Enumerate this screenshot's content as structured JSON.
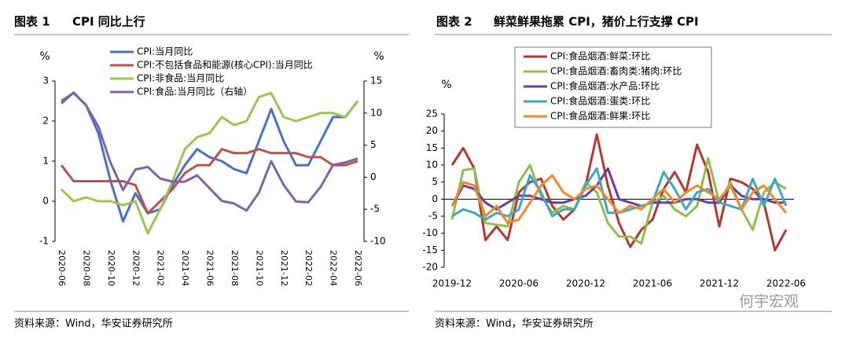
{
  "chart_data": [
    {
      "type": "line",
      "figure_label": "图表 1",
      "title": "CPI 同比上行",
      "source": "资料来源：Wind，华安证券研究所",
      "ylabel": "%",
      "y2label": "%",
      "xtick_rotation": 90,
      "legend_frame": false,
      "categories": [
        "2020-06",
        null,
        "2020-08",
        null,
        "2020-10",
        null,
        "2020-12",
        null,
        "2021-02",
        null,
        "2021-04",
        null,
        "2021-06",
        null,
        "2021-08",
        null,
        "2021-10",
        null,
        "2021-12",
        null,
        "2022-02",
        null,
        "2022-04",
        null,
        "2022-06"
      ],
      "ylim": [
        -1,
        3
      ],
      "yticks": [
        -1,
        0,
        1,
        2,
        3
      ],
      "y2lim": [
        -10,
        15
      ],
      "y2ticks": [
        -10,
        -5,
        0,
        5,
        10,
        15
      ],
      "series": [
        {
          "name": "CPI:当月同比",
          "color": "#4472c4",
          "values": [
            2.5,
            2.7,
            2.4,
            1.7,
            0.5,
            -0.5,
            0.2,
            -0.3,
            -0.2,
            0.4,
            0.9,
            1.3,
            1.1,
            1.0,
            0.8,
            0.7,
            1.5,
            2.3,
            1.5,
            0.9,
            0.9,
            1.5,
            2.1,
            2.1,
            2.5
          ]
        },
        {
          "name": "CPI:不包括食品和能源(核心CPI):当月同比",
          "color": "#c0504d",
          "values": [
            0.9,
            0.5,
            0.5,
            0.5,
            0.5,
            0.5,
            0.4,
            -0.3,
            0,
            0.3,
            0.7,
            0.9,
            0.9,
            1.3,
            1.2,
            1.2,
            1.3,
            1.2,
            1.2,
            1.2,
            1.1,
            1.1,
            0.9,
            0.9,
            1.0
          ]
        },
        {
          "name": "CPI:非食品:当月同比",
          "color": "#9bc54d",
          "values": [
            0.3,
            0,
            0.1,
            0,
            0,
            -0.1,
            0,
            -0.8,
            -0.2,
            0.5,
            1.3,
            1.6,
            1.7,
            2.1,
            1.9,
            2.0,
            2.6,
            2.7,
            2.1,
            2.0,
            2.1,
            2.2,
            2.2,
            2.1,
            2.5
          ]
        },
        {
          "name": "CPI:食品:当月同比（右轴）",
          "color": "#8064a2",
          "axis": "y2",
          "values": [
            11.5,
            13.2,
            11.2,
            7.9,
            2.2,
            -2.0,
            1.2,
            1.6,
            -0.2,
            -0.7,
            -0.7,
            0.3,
            -1.7,
            -3.7,
            -4.1,
            -5.2,
            -2.4,
            2.5,
            -1.2,
            -3.8,
            -3.9,
            -1.5,
            1.9,
            2.3,
            2.9
          ]
        }
      ]
    },
    {
      "type": "line",
      "figure_label": "图表 2",
      "title": "鲜菜鲜果拖累 CPI，猪价上行支撑 CPI",
      "source": "资料来源：Wind，华安证券研究所",
      "ylabel": "%",
      "xtick_rotation": 0,
      "legend_frame": true,
      "categories": [
        "2019-12",
        null,
        null,
        null,
        null,
        null,
        "2020-06",
        null,
        null,
        null,
        null,
        null,
        "2020-12",
        null,
        null,
        null,
        null,
        null,
        "2021-06",
        null,
        null,
        null,
        null,
        null,
        "2021-12",
        null,
        null,
        null,
        null,
        null,
        "2022-06"
      ],
      "ylim": [
        -20,
        25
      ],
      "yticks": [
        -20,
        -15,
        -10,
        -5,
        0,
        5,
        10,
        15,
        20,
        25
      ],
      "series": [
        {
          "name": "CPI:食品烟酒:鲜菜:环比",
          "color": "#b5372e",
          "values": [
            10,
            15,
            9,
            -12,
            -8,
            -12,
            2,
            5,
            6,
            -2,
            -6,
            -3,
            4,
            19,
            4,
            -7,
            -14,
            -9,
            -6,
            3,
            8,
            2,
            16,
            8,
            -8,
            6,
            5,
            3,
            -1,
            -15,
            -9
          ]
        },
        {
          "name": "CPI:食品烟酒:畜肉类:猪肉:环比",
          "color": "#8cbf4f",
          "values": [
            -6,
            8.5,
            9,
            -7,
            -7.5,
            -8,
            5,
            10,
            1,
            -4,
            -2,
            -3,
            5,
            2,
            -7,
            -11,
            -11,
            -13,
            -1,
            1,
            -3,
            -5,
            -2,
            12,
            -1,
            5,
            -3,
            -9,
            2,
            5,
            3
          ]
        },
        {
          "name": "CPI:食品烟酒:水产品:环比",
          "color": "#6a3d9a",
          "values": [
            -2,
            4,
            3,
            -1,
            -3,
            -1,
            1,
            1,
            0,
            -1,
            -1,
            0,
            1,
            4,
            9,
            0,
            -1,
            -2,
            -1,
            -1,
            -1,
            0,
            0,
            -1,
            -1,
            4,
            1,
            0,
            0,
            -1,
            -1
          ]
        },
        {
          "name": "CPI:食品烟酒:蛋类:环比",
          "color": "#3aa9c4",
          "values": [
            -5,
            -3,
            -4,
            -6,
            -4,
            -5,
            -3,
            7,
            2,
            -5,
            -3,
            -3,
            4,
            9,
            -4,
            -4,
            -3,
            -2,
            -1,
            8,
            3,
            -3,
            2,
            3,
            -1,
            -2,
            -3,
            6,
            -2,
            6,
            -2
          ]
        },
        {
          "name": "CPI:食品烟酒:鲜果:环比",
          "color": "#f0892a",
          "values": [
            -2,
            5,
            4,
            -5,
            -2,
            -7,
            -6,
            -1,
            4,
            7,
            2,
            0,
            3,
            4,
            0,
            -4,
            -2,
            -3,
            0,
            3,
            -1,
            2,
            4,
            2,
            0,
            4,
            -3,
            2,
            4,
            0,
            -4
          ]
        }
      ]
    }
  ],
  "watermark": "何宇宏观"
}
